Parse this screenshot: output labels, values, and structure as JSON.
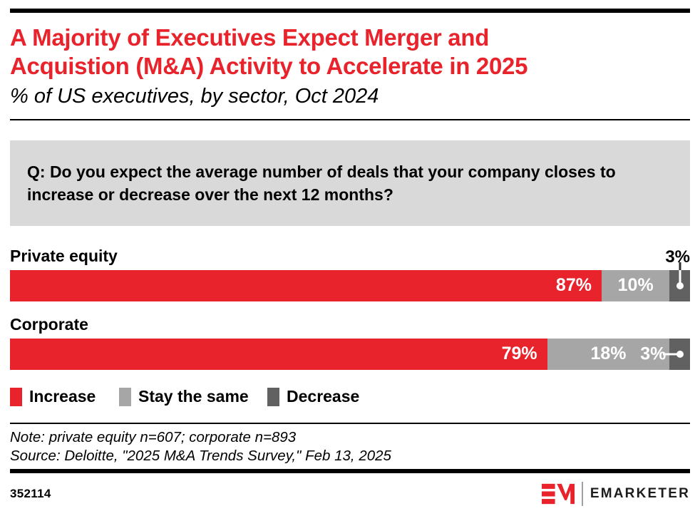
{
  "theme": {
    "accent_red": "#e8232c",
    "light_gray": "#a6a6a6",
    "dark_gray": "#616161",
    "question_box_bg": "#d9d9d9"
  },
  "header": {
    "title_line1": "A Majority of Executives Expect Merger and",
    "title_line2": "Acquistion (M&A) Activity to Accelerate in 2025",
    "subtitle": "% of US executives, by sector, Oct 2024"
  },
  "question": {
    "text": "Q: Do you expect the average number of deals that your company closes to increase or decrease over the next 12 months?"
  },
  "chart_data": {
    "type": "bar",
    "orientation": "horizontal-stacked",
    "units": "%",
    "title": "A Majority of Executives Expect Merger and Acquistion (M&A) Activity to Accelerate in 2025",
    "subtitle": "% of US executives, by sector, Oct 2024",
    "categories": [
      "Private equity",
      "Corporate"
    ],
    "series": [
      {
        "name": "Increase",
        "color": "#e8232c",
        "values": [
          87,
          79
        ]
      },
      {
        "name": "Stay the same",
        "color": "#a6a6a6",
        "values": [
          10,
          18
        ]
      },
      {
        "name": "Decrease",
        "color": "#616161",
        "values": [
          3,
          3
        ]
      }
    ],
    "bar_labels": [
      {
        "increase": "87%",
        "stay": "10%",
        "decrease": "3%"
      },
      {
        "increase": "79%",
        "stay": "18%",
        "decrease": "3%"
      }
    ],
    "xlim": [
      0,
      100
    ],
    "grid": false,
    "legend_position": "bottom"
  },
  "footnotes": {
    "note": "Note: private equity n=607; corporate n=893",
    "source": "Source: Deloitte, \"2025 M&A Trends Survey,\" Feb 13, 2025"
  },
  "footer": {
    "chart_id": "352114",
    "brand": "EMARKETER"
  }
}
